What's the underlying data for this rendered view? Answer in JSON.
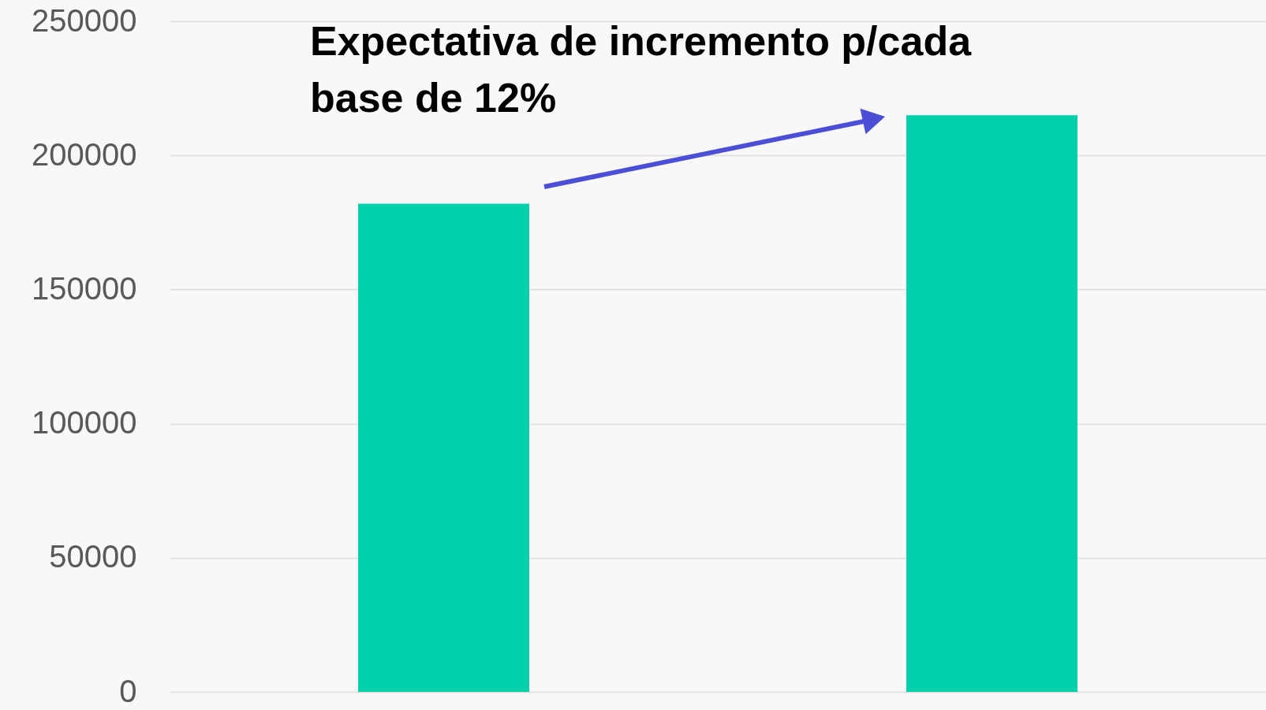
{
  "chart_data": {
    "type": "bar",
    "annotations": [
      "Expectativa de incremento p/cada base de 12%"
    ],
    "categories": [
      null,
      null
    ],
    "values": [
      182000,
      215000
    ],
    "color": "#00d1aa",
    "ylim": [
      0,
      250000
    ],
    "yticks": [
      0,
      50000,
      100000,
      150000,
      200000,
      250000
    ],
    "grid": "y"
  }
}
